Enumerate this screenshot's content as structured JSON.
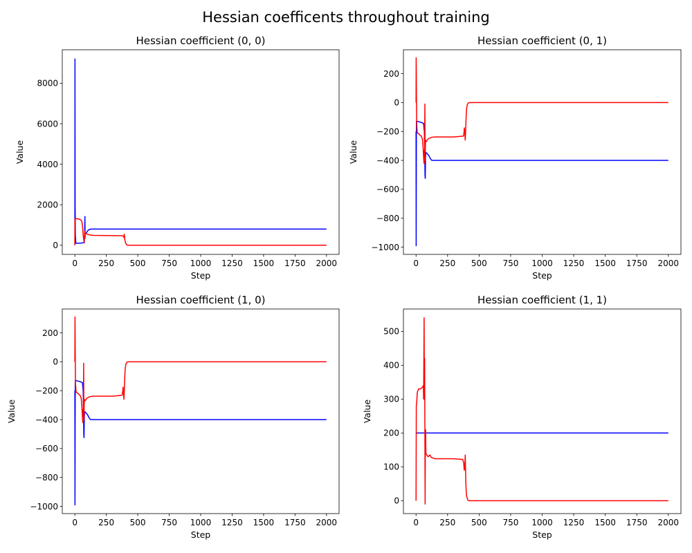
{
  "figure_title": "Hessian coefficents throughout training",
  "colors": {
    "series_a": "#0000ff",
    "series_b": "#ff0000",
    "axes": "#000000"
  },
  "chart_data": [
    {
      "type": "line",
      "title": "Hessian coefficient (0, 0)",
      "xlabel": "Step",
      "ylabel": "Value",
      "xlim": [
        -100,
        2100
      ],
      "ylim": [
        -450,
        9650
      ],
      "xticks": [
        0,
        250,
        500,
        750,
        1000,
        1250,
        1500,
        1750,
        2000
      ],
      "yticks": [
        0,
        2000,
        4000,
        6000,
        8000
      ],
      "series": [
        {
          "color": "#0000ff",
          "points": [
            [
              0,
              0
            ],
            [
              1,
              9200
            ],
            [
              2,
              2000
            ],
            [
              4,
              500
            ],
            [
              8,
              100
            ],
            [
              20,
              100
            ],
            [
              50,
              110
            ],
            [
              75,
              130
            ],
            [
              78,
              600
            ],
            [
              80,
              1420
            ],
            [
              81,
              350
            ],
            [
              82,
              550
            ],
            [
              90,
              600
            ],
            [
              100,
              700
            ],
            [
              110,
              760
            ],
            [
              120,
              790
            ],
            [
              130,
              800
            ],
            [
              2000,
              800
            ]
          ]
        },
        {
          "color": "#ff0000",
          "points": [
            [
              0,
              0
            ],
            [
              1,
              1300
            ],
            [
              5,
              1320
            ],
            [
              25,
              1300
            ],
            [
              40,
              1280
            ],
            [
              55,
              1200
            ],
            [
              62,
              900
            ],
            [
              66,
              500
            ],
            [
              70,
              300
            ],
            [
              72,
              200
            ],
            [
              74,
              150
            ],
            [
              78,
              700
            ],
            [
              80,
              350
            ],
            [
              82,
              600
            ],
            [
              86,
              580
            ],
            [
              95,
              560
            ],
            [
              110,
              520
            ],
            [
              125,
              500
            ],
            [
              150,
              490
            ],
            [
              250,
              480
            ],
            [
              375,
              470
            ],
            [
              385,
              450
            ],
            [
              390,
              380
            ],
            [
              392,
              550
            ],
            [
              395,
              420
            ],
            [
              398,
              250
            ],
            [
              403,
              120
            ],
            [
              410,
              30
            ],
            [
              420,
              0
            ],
            [
              2000,
              0
            ]
          ]
        }
      ]
    },
    {
      "type": "line",
      "title": "Hessian coefficient (0, 1)",
      "xlabel": "Step",
      "ylabel": "Value",
      "xlim": [
        -100,
        2100
      ],
      "ylim": [
        -1050,
        365
      ],
      "xticks": [
        0,
        250,
        500,
        750,
        1000,
        1250,
        1500,
        1750,
        2000
      ],
      "yticks": [
        -1000,
        -800,
        -600,
        -400,
        -200,
        0,
        200
      ],
      "series": [
        {
          "color": "#0000ff",
          "points": [
            [
              0,
              -200
            ],
            [
              1,
              -990
            ],
            [
              2,
              -500
            ],
            [
              3,
              -130
            ],
            [
              10,
              -130
            ],
            [
              30,
              -135
            ],
            [
              50,
              -140
            ],
            [
              60,
              -145
            ],
            [
              66,
              -200
            ],
            [
              69,
              -350
            ],
            [
              71,
              -500
            ],
            [
              73,
              -525
            ],
            [
              75,
              -380
            ],
            [
              78,
              -345
            ],
            [
              85,
              -350
            ],
            [
              100,
              -365
            ],
            [
              115,
              -390
            ],
            [
              125,
              -400
            ],
            [
              2000,
              -400
            ]
          ]
        },
        {
          "color": "#ff0000",
          "points": [
            [
              0,
              0
            ],
            [
              1,
              310
            ],
            [
              2,
              200
            ],
            [
              3,
              50
            ],
            [
              5,
              -150
            ],
            [
              10,
              -210
            ],
            [
              20,
              -215
            ],
            [
              30,
              -225
            ],
            [
              40,
              -230
            ],
            [
              50,
              -250
            ],
            [
              55,
              -300
            ],
            [
              60,
              -380
            ],
            [
              63,
              -420
            ],
            [
              65,
              -330
            ],
            [
              67,
              -420
            ],
            [
              70,
              -10
            ],
            [
              72,
              -400
            ],
            [
              74,
              -300
            ],
            [
              76,
              -260
            ],
            [
              80,
              -270
            ],
            [
              86,
              -265
            ],
            [
              92,
              -255
            ],
            [
              100,
              -250
            ],
            [
              110,
              -245
            ],
            [
              125,
              -240
            ],
            [
              150,
              -238
            ],
            [
              300,
              -238
            ],
            [
              375,
              -232
            ],
            [
              380,
              -210
            ],
            [
              383,
              -175
            ],
            [
              386,
              -210
            ],
            [
              390,
              -260
            ],
            [
              393,
              -200
            ],
            [
              396,
              -120
            ],
            [
              400,
              -50
            ],
            [
              406,
              -15
            ],
            [
              415,
              -2
            ],
            [
              430,
              0
            ],
            [
              2000,
              0
            ]
          ]
        }
      ]
    },
    {
      "type": "line",
      "title": "Hessian coefficient (1, 0)",
      "xlabel": "Step",
      "ylabel": "Value",
      "xlim": [
        -100,
        2100
      ],
      "ylim": [
        -1050,
        365
      ],
      "xticks": [
        0,
        250,
        500,
        750,
        1000,
        1250,
        1500,
        1750,
        2000
      ],
      "yticks": [
        -1000,
        -800,
        -600,
        -400,
        -200,
        0,
        200
      ],
      "series": [
        {
          "color": "#0000ff",
          "points": [
            [
              0,
              -200
            ],
            [
              1,
              -990
            ],
            [
              2,
              -500
            ],
            [
              3,
              -130
            ],
            [
              10,
              -130
            ],
            [
              30,
              -135
            ],
            [
              50,
              -140
            ],
            [
              60,
              -145
            ],
            [
              66,
              -200
            ],
            [
              69,
              -350
            ],
            [
              71,
              -500
            ],
            [
              73,
              -525
            ],
            [
              75,
              -380
            ],
            [
              78,
              -345
            ],
            [
              85,
              -350
            ],
            [
              100,
              -365
            ],
            [
              115,
              -390
            ],
            [
              125,
              -400
            ],
            [
              2000,
              -400
            ]
          ]
        },
        {
          "color": "#ff0000",
          "points": [
            [
              0,
              0
            ],
            [
              1,
              310
            ],
            [
              2,
              200
            ],
            [
              3,
              50
            ],
            [
              5,
              -150
            ],
            [
              10,
              -210
            ],
            [
              20,
              -215
            ],
            [
              30,
              -225
            ],
            [
              40,
              -230
            ],
            [
              50,
              -250
            ],
            [
              55,
              -300
            ],
            [
              60,
              -380
            ],
            [
              63,
              -420
            ],
            [
              65,
              -330
            ],
            [
              67,
              -420
            ],
            [
              70,
              -10
            ],
            [
              72,
              -400
            ],
            [
              74,
              -300
            ],
            [
              76,
              -260
            ],
            [
              80,
              -270
            ],
            [
              86,
              -265
            ],
            [
              92,
              -255
            ],
            [
              100,
              -250
            ],
            [
              110,
              -245
            ],
            [
              125,
              -240
            ],
            [
              150,
              -238
            ],
            [
              300,
              -238
            ],
            [
              375,
              -232
            ],
            [
              380,
              -210
            ],
            [
              383,
              -175
            ],
            [
              386,
              -210
            ],
            [
              390,
              -260
            ],
            [
              393,
              -200
            ],
            [
              396,
              -120
            ],
            [
              400,
              -50
            ],
            [
              406,
              -15
            ],
            [
              415,
              -2
            ],
            [
              430,
              0
            ],
            [
              2000,
              0
            ]
          ]
        }
      ]
    },
    {
      "type": "line",
      "title": "Hessian coefficient (1, 1)",
      "xlabel": "Step",
      "ylabel": "Value",
      "xlim": [
        -100,
        2100
      ],
      "ylim": [
        -38,
        566
      ],
      "xticks": [
        0,
        250,
        500,
        750,
        1000,
        1250,
        1500,
        1750,
        2000
      ],
      "yticks": [
        0,
        100,
        200,
        300,
        400,
        500
      ],
      "series": [
        {
          "color": "#0000ff",
          "points": [
            [
              0,
              200
            ],
            [
              2000,
              200
            ]
          ]
        },
        {
          "color": "#ff0000",
          "points": [
            [
              0,
              0
            ],
            [
              2,
              280
            ],
            [
              5,
              290
            ],
            [
              10,
              320
            ],
            [
              20,
              330
            ],
            [
              35,
              330
            ],
            [
              50,
              335
            ],
            [
              58,
              340
            ],
            [
              60,
              300
            ],
            [
              62,
              420
            ],
            [
              64,
              540
            ],
            [
              66,
              300
            ],
            [
              68,
              420
            ],
            [
              70,
              200
            ],
            [
              72,
              -10
            ],
            [
              74,
              200
            ],
            [
              76,
              210
            ],
            [
              78,
              140
            ],
            [
              85,
              135
            ],
            [
              95,
              130
            ],
            [
              110,
              135
            ],
            [
              120,
              128
            ],
            [
              150,
              124
            ],
            [
              300,
              124
            ],
            [
              370,
              122
            ],
            [
              378,
              110
            ],
            [
              382,
              90
            ],
            [
              386,
              100
            ],
            [
              390,
              135
            ],
            [
              393,
              80
            ],
            [
              396,
              40
            ],
            [
              400,
              15
            ],
            [
              410,
              2
            ],
            [
              420,
              0
            ],
            [
              2000,
              0
            ]
          ]
        }
      ]
    }
  ]
}
